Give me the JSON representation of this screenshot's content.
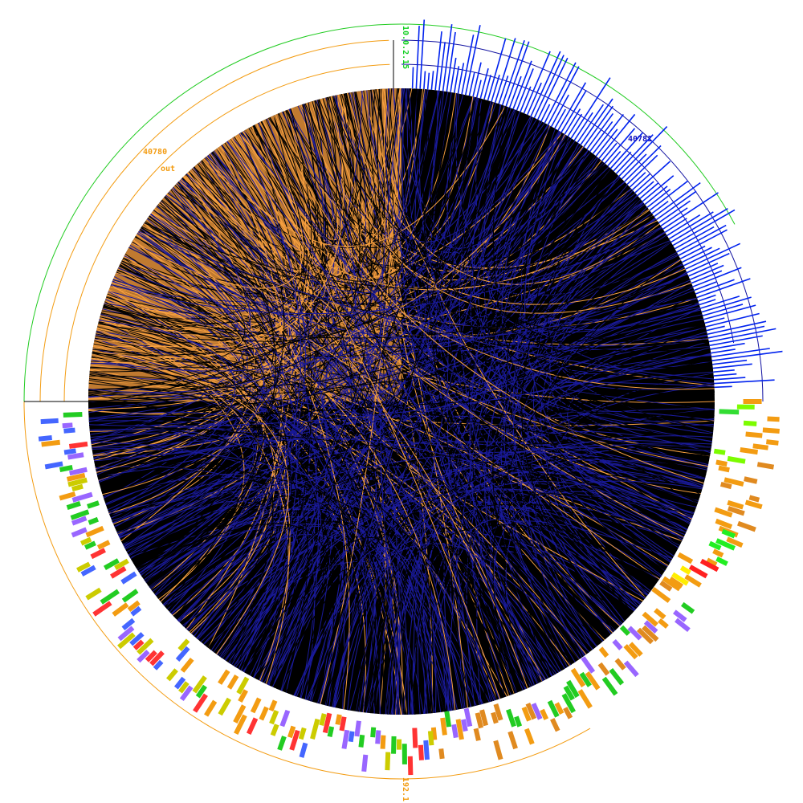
{
  "labels": {
    "host_top": "10.0.2.15",
    "host_bottom": "192.1",
    "port_out": "40780",
    "direction": "out",
    "port_in": "40781"
  }
}
